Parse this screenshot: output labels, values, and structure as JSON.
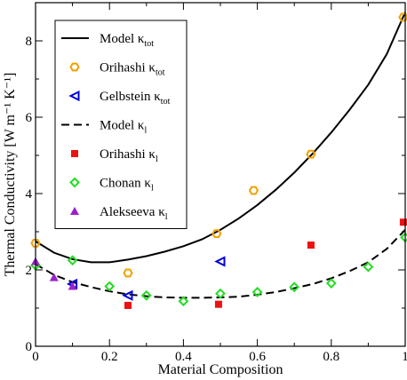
{
  "chart_data": {
    "type": "scatter",
    "xlabel": "Material Composition",
    "ylabel": "Thermal Conductivity [W m⁻¹ K⁻¹]",
    "xlim": [
      0,
      1
    ],
    "ylim": [
      0,
      9
    ],
    "xticks": [
      "0",
      "0.2",
      "0.4",
      "0.6",
      "0.8",
      "1"
    ],
    "yticks": [
      "0",
      "2",
      "4",
      "6",
      "8"
    ],
    "grid": false,
    "legend_position": "top-left",
    "series": [
      {
        "name": "Model",
        "sub": "tot",
        "kind": "line",
        "dash": "solid",
        "color": "#000000",
        "x": [
          0,
          0.05,
          0.1,
          0.15,
          0.2,
          0.25,
          0.3,
          0.35,
          0.4,
          0.45,
          0.5,
          0.55,
          0.6,
          0.65,
          0.7,
          0.75,
          0.8,
          0.85,
          0.9,
          0.95,
          1.0
        ],
        "y": [
          2.75,
          2.45,
          2.28,
          2.2,
          2.2,
          2.27,
          2.36,
          2.48,
          2.62,
          2.8,
          3.05,
          3.35,
          3.7,
          4.1,
          4.55,
          5.05,
          5.6,
          6.2,
          6.85,
          7.65,
          8.75
        ]
      },
      {
        "name": "Orihashi",
        "sub": "tot",
        "kind": "marker",
        "marker": "hexagon-open",
        "color": "#f0a000",
        "x": [
          0,
          0.25,
          0.49,
          0.59,
          0.745,
          0.995
        ],
        "y": [
          2.7,
          1.92,
          2.95,
          4.08,
          5.03,
          8.62
        ]
      },
      {
        "name": "Gelbstein",
        "sub": "tot",
        "kind": "marker",
        "marker": "triangle-left-open",
        "color": "#0000dd",
        "x": [
          0.1,
          0.25,
          0.5
        ],
        "y": [
          1.63,
          1.33,
          2.22
        ]
      },
      {
        "name": "Model",
        "sub": "l",
        "kind": "line",
        "dash": "dashed",
        "color": "#000000",
        "x": [
          0,
          0.05,
          0.1,
          0.15,
          0.2,
          0.25,
          0.3,
          0.35,
          0.4,
          0.45,
          0.5,
          0.55,
          0.6,
          0.65,
          0.7,
          0.75,
          0.8,
          0.85,
          0.9,
          0.95,
          1.0
        ],
        "y": [
          2.15,
          1.87,
          1.68,
          1.55,
          1.44,
          1.36,
          1.31,
          1.28,
          1.27,
          1.27,
          1.28,
          1.3,
          1.35,
          1.42,
          1.52,
          1.63,
          1.78,
          1.97,
          2.2,
          2.55,
          3.05
        ]
      },
      {
        "name": "Orihashi",
        "sub": "l",
        "kind": "marker",
        "marker": "square-filled",
        "color": "#ee1111",
        "x": [
          0.25,
          0.495,
          0.745,
          0.995
        ],
        "y": [
          1.07,
          1.1,
          2.65,
          3.25
        ]
      },
      {
        "name": "Chonan",
        "sub": "l",
        "kind": "marker",
        "marker": "diamond-open",
        "color": "#22dd22",
        "x": [
          0,
          0.1,
          0.2,
          0.3,
          0.4,
          0.5,
          0.6,
          0.7,
          0.8,
          0.9,
          1.0
        ],
        "y": [
          2.12,
          2.25,
          1.57,
          1.33,
          1.18,
          1.38,
          1.42,
          1.55,
          1.65,
          2.08,
          2.85
        ]
      },
      {
        "name": "Alekseeva",
        "sub": "l",
        "kind": "marker",
        "marker": "triangle-up-filled",
        "color": "#9922cc",
        "x": [
          0,
          0.05,
          0.1
        ],
        "y": [
          2.22,
          1.8,
          1.57
        ]
      }
    ]
  }
}
